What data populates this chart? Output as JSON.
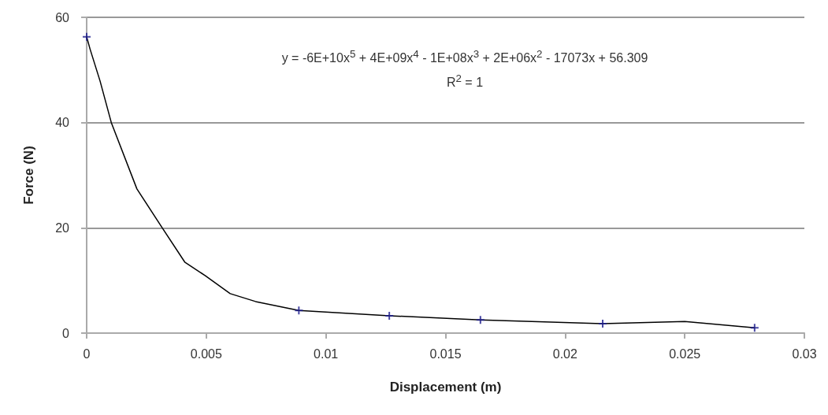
{
  "chart_data": {
    "type": "scatter",
    "xlabel": "Displacement (m)",
    "ylabel": "Force (N)",
    "annotations": [
      "y = -6E+10x$^{5}$ + 4E+09x$^{4}$ - 1E+08x$^{3}$ + 2E+06x$^{2}$ - 17073x + 56.309",
      "R$^{2}$ = 1"
    ],
    "series": [
      {
        "marker": "cross",
        "color": "#1a1a8c",
        "x": [
          0,
          0.00887,
          0.01265,
          0.01646,
          0.02157,
          0.02792
        ],
        "values": [
          56.3,
          4.3,
          3.3,
          2.5,
          1.8,
          1.0
        ]
      },
      {
        "type": "line",
        "marker": "none",
        "line_style": "solid",
        "color": "#000000",
        "x": [
          0,
          0.00014,
          0.00056,
          0.00103,
          0.0021,
          0.00316,
          0.0041,
          0.00496,
          0.006,
          0.00706,
          0.00887,
          0.01265,
          0.01646,
          0.02157,
          0.025,
          0.02792
        ],
        "values": [
          56.3,
          54,
          47.9,
          40,
          27.4,
          20,
          13.5,
          10.9,
          7.5,
          6.0,
          4.3,
          3.3,
          2.5,
          1.8,
          2.2,
          1.0
        ]
      }
    ],
    "xlim": [
      0,
      0.03
    ],
    "xticks": [
      0,
      0.005,
      0.01,
      0.015,
      0.02,
      0.025,
      0.03
    ],
    "ylim": [
      0,
      60
    ],
    "yticks": [
      0,
      20,
      40,
      60
    ],
    "grid": "y"
  }
}
